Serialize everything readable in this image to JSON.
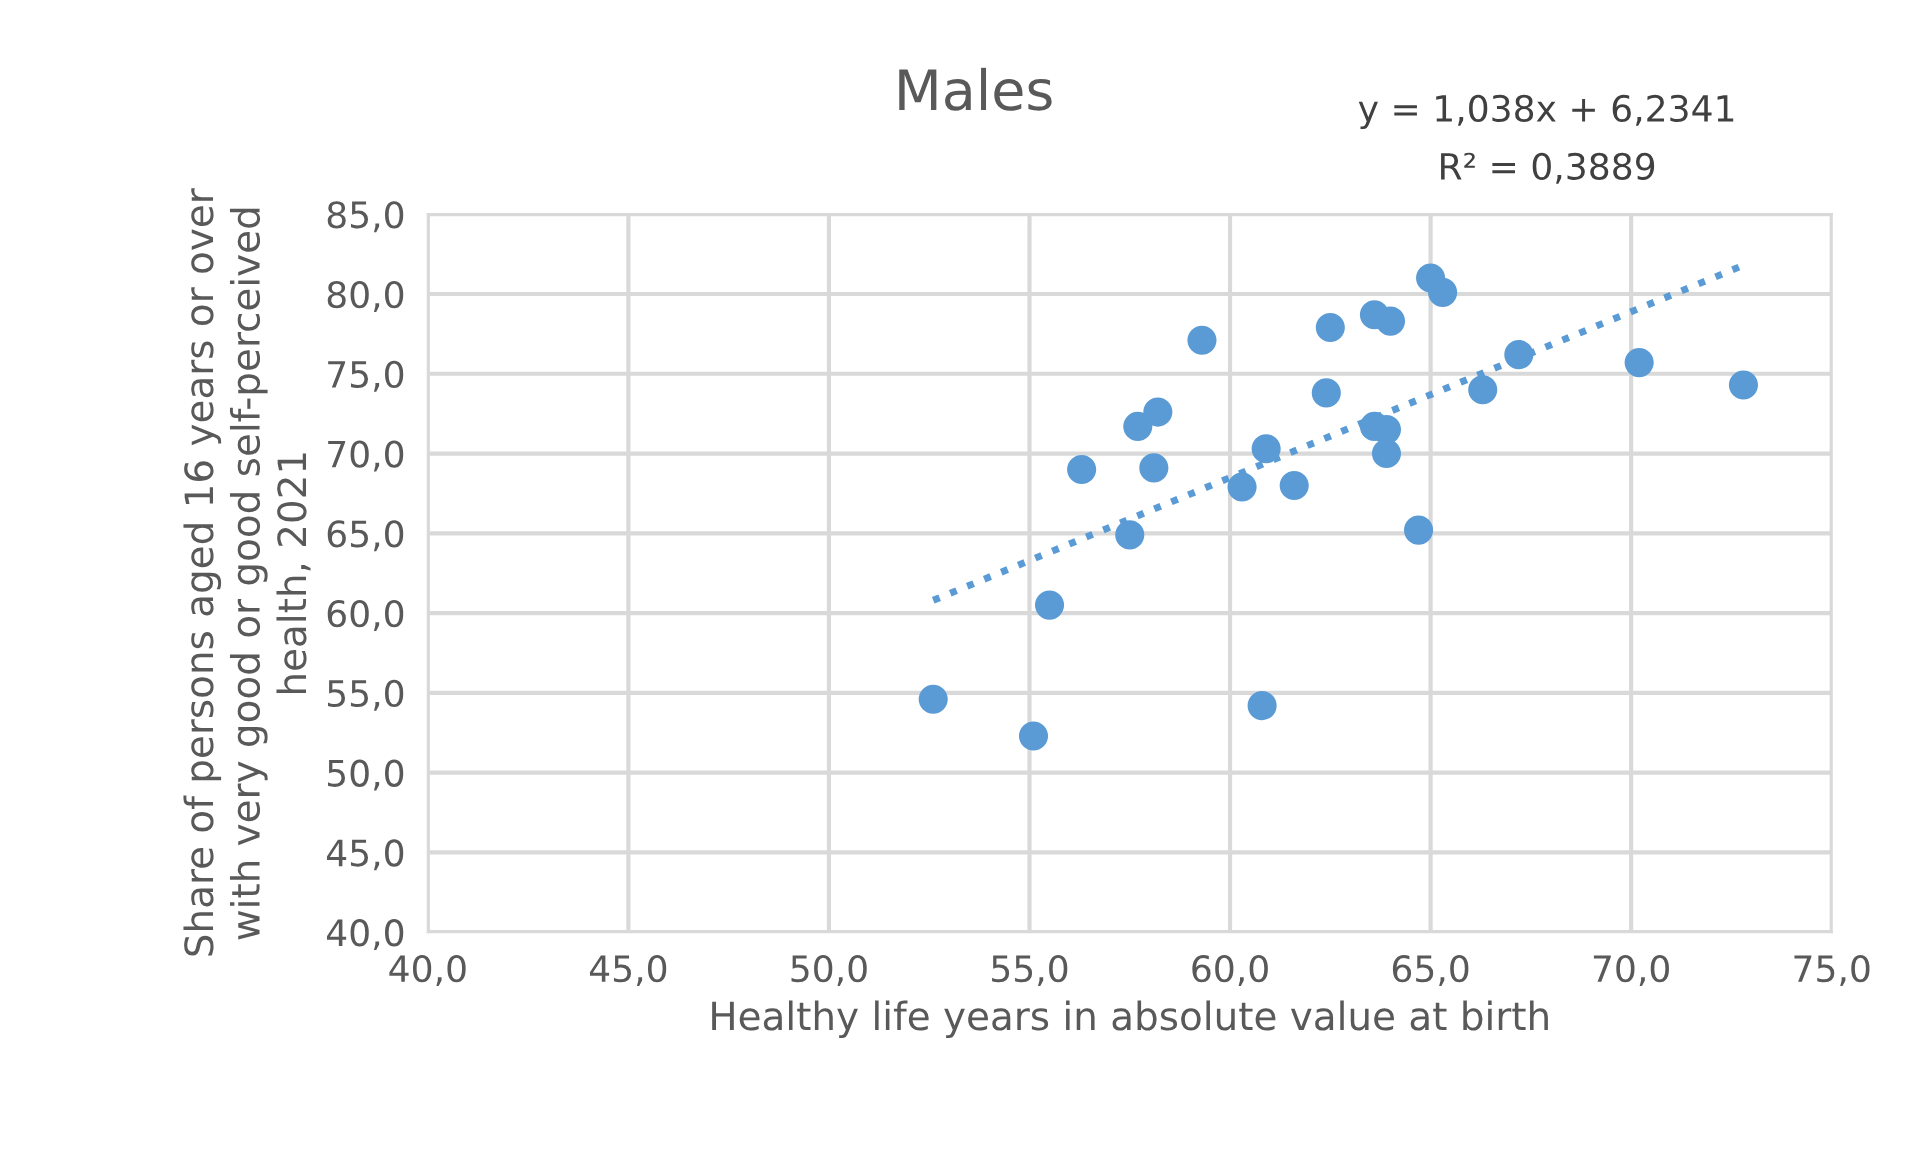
{
  "chart_data": {
    "type": "scatter",
    "title": "Males",
    "xlabel": "Healthy life years in absolute value at birth",
    "ylabel": "Share of persons aged 16 years or over\nwith very good or good self-perceived\nhealth, 2021",
    "annotations": [
      "y = 1,038x + 6,2341",
      "R² = 0,3889"
    ],
    "series": [
      {
        "color": "#5b9bd5",
        "marker": "circle",
        "x": [
          52.6,
          55.1,
          55.5,
          56.3,
          57.5,
          57.7,
          58.2,
          58.1,
          59.3,
          60.3,
          60.9,
          60.8,
          61.6,
          62.4,
          62.5,
          63.6,
          64.0,
          63.6,
          63.9,
          63.9,
          64.7,
          65.0,
          65.3,
          66.3,
          67.2,
          70.2,
          72.8
        ],
        "values": [
          54.6,
          52.3,
          60.5,
          69.0,
          64.9,
          71.7,
          72.6,
          69.1,
          77.1,
          67.9,
          70.3,
          54.2,
          68.0,
          73.8,
          77.9,
          78.7,
          78.3,
          71.7,
          71.5,
          70.0,
          65.2,
          81.0,
          80.1,
          74.0,
          76.2,
          75.7,
          74.3
        ]
      },
      {
        "type": "line",
        "color": "#5b9bd5",
        "line_style": "dotted",
        "x": [
          52.6,
          72.8
        ],
        "values": [
          60.8,
          81.8
        ]
      }
    ],
    "xlim": [
      40,
      75
    ],
    "ylim": [
      40,
      85
    ],
    "xticks": [
      {
        "value": 40,
        "label": "40,0"
      },
      {
        "value": 45,
        "label": "45,0"
      },
      {
        "value": 50,
        "label": "50,0"
      },
      {
        "value": 55,
        "label": "55,0"
      },
      {
        "value": 60,
        "label": "60,0"
      },
      {
        "value": 65,
        "label": "65,0"
      },
      {
        "value": 70,
        "label": "70,0"
      },
      {
        "value": 75,
        "label": "75,0"
      }
    ],
    "yticks": [
      {
        "value": 40,
        "label": "40,0"
      },
      {
        "value": 45,
        "label": "45,0"
      },
      {
        "value": 50,
        "label": "50,0"
      },
      {
        "value": 55,
        "label": "55,0"
      },
      {
        "value": 60,
        "label": "60,0"
      },
      {
        "value": 65,
        "label": "65,0"
      },
      {
        "value": 70,
        "label": "70,0"
      },
      {
        "value": 75,
        "label": "75,0"
      },
      {
        "value": 80,
        "label": "80,0"
      },
      {
        "value": 85,
        "label": "85,0"
      }
    ],
    "grid": true
  }
}
